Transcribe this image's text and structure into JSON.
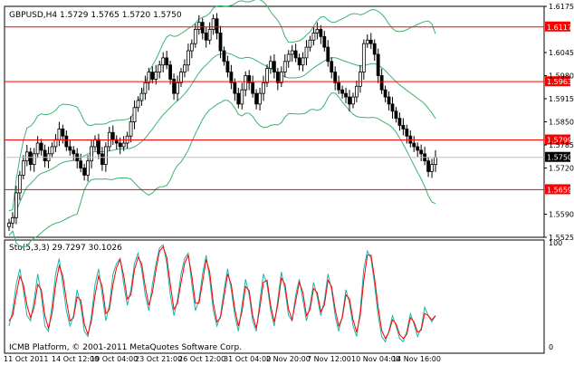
{
  "symbol_header": "GBPUSD,H4  1.5729 1.5765 1.5720 1.5750",
  "indicator_header": "Sto(5,3,3) 29.7297 30.1026",
  "copyright": "ICMB Platform, © 2001-2011 MetaQuotes Software Corp.",
  "colors": {
    "background": "#ffffff",
    "candle": "#000000",
    "bollinger": "#3cb371",
    "level_line": "#ff0000",
    "level_label_bg": "#ff0000",
    "current_label_bg": "#000000",
    "stoch_main": "#20b2aa",
    "stoch_signal": "#ff0000"
  },
  "chart_data": [
    {
      "type": "candlestick",
      "title": "GBPUSD,H4",
      "ohlc_readout": {
        "open": 1.5729,
        "high": 1.5765,
        "low": 1.572,
        "close": 1.575
      },
      "ylim": [
        1.5525,
        1.6175
      ],
      "y_ticks": [
        "1.6175",
        "1.6117",
        "1.6045",
        "1.5980",
        "1.5963",
        "1.5915",
        "1.5850",
        "1.5799",
        "1.5785",
        "1.5750",
        "1.5720",
        "1.5659",
        "1.5590",
        "1.5525"
      ],
      "x_ticks": [
        "11 Oct 2011",
        "14 Oct 12:00",
        "19 Oct 04:00",
        "23 Oct 21:00",
        "26 Oct 12:00",
        "31 Oct 04:00",
        "2 Nov 20:00",
        "7 Nov 12:00",
        "10 Nov 04:00",
        "14 Nov 16:00"
      ],
      "horizontal_levels": [
        {
          "label": "1.6117",
          "value": 1.6117
        },
        {
          "label": "1.5963",
          "value": 1.5963
        },
        {
          "label": "1.5799",
          "value": 1.5799
        },
        {
          "label": "1.5659",
          "value": 1.5659
        }
      ],
      "current_price": {
        "label": "1.5750",
        "value": 1.575
      },
      "series_close": [
        1.5565,
        1.558,
        1.565,
        1.57,
        1.574,
        1.5765,
        1.573,
        1.576,
        1.579,
        1.577,
        1.574,
        1.576,
        1.578,
        1.58,
        1.583,
        1.581,
        1.578,
        1.577,
        1.576,
        1.574,
        1.572,
        1.57,
        1.574,
        1.578,
        1.58,
        1.576,
        1.573,
        1.578,
        1.582,
        1.58,
        1.579,
        1.578,
        1.579,
        1.581,
        1.585,
        1.589,
        1.591,
        1.593,
        1.596,
        1.599,
        1.597,
        1.599,
        1.601,
        1.603,
        1.601,
        1.597,
        1.593,
        1.596,
        1.599,
        1.601,
        1.605,
        1.607,
        1.611,
        1.613,
        1.61,
        1.608,
        1.611,
        1.614,
        1.61,
        1.605,
        1.602,
        1.599,
        1.596,
        1.593,
        1.59,
        1.594,
        1.598,
        1.596,
        1.593,
        1.59,
        1.593,
        1.596,
        1.6,
        1.602,
        1.599,
        1.596,
        1.599,
        1.602,
        1.604,
        1.605,
        1.603,
        1.601,
        1.603,
        1.606,
        1.608,
        1.61,
        1.611,
        1.609,
        1.606,
        1.602,
        1.599,
        1.596,
        1.594,
        1.593,
        1.592,
        1.59,
        1.592,
        1.595,
        1.599,
        1.607,
        1.608,
        1.607,
        1.604,
        1.598,
        1.594,
        1.592,
        1.59,
        1.588,
        1.586,
        1.584,
        1.583,
        1.581,
        1.579,
        1.578,
        1.577,
        1.576,
        1.574,
        1.571,
        1.573,
        1.575
      ]
    },
    {
      "type": "line",
      "title": "Sto(5,3,3)",
      "ylim": [
        0,
        100
      ],
      "y_ticks": [
        "100",
        "0"
      ],
      "series": [
        {
          "name": "main",
          "value_last": 29.7297,
          "values": [
            20,
            35,
            60,
            75,
            55,
            30,
            25,
            45,
            70,
            50,
            20,
            15,
            40,
            70,
            85,
            60,
            35,
            20,
            30,
            55,
            40,
            15,
            10,
            30,
            60,
            75,
            50,
            25,
            40,
            70,
            80,
            85,
            60,
            40,
            55,
            80,
            90,
            75,
            50,
            35,
            60,
            80,
            95,
            98,
            80,
            50,
            30,
            45,
            70,
            85,
            90,
            60,
            35,
            45,
            70,
            88,
            65,
            35,
            20,
            30,
            55,
            75,
            55,
            30,
            15,
            40,
            65,
            50,
            25,
            15,
            45,
            70,
            60,
            35,
            20,
            45,
            72,
            55,
            30,
            25,
            50,
            65,
            45,
            25,
            40,
            62,
            48,
            30,
            45,
            70,
            55,
            30,
            15,
            30,
            55,
            42,
            20,
            10,
            35,
            75,
            92,
            85,
            60,
            30,
            10,
            5,
            15,
            30,
            20,
            8,
            5,
            15,
            32,
            22,
            10,
            18,
            38,
            30,
            24,
            29.7297
          ]
        },
        {
          "name": "signal",
          "value_last": 30.1026,
          "values": [
            25,
            30,
            50,
            68,
            60,
            40,
            28,
            38,
            60,
            55,
            30,
            18,
            32,
            60,
            78,
            68,
            45,
            25,
            28,
            48,
            45,
            22,
            12,
            25,
            50,
            68,
            58,
            32,
            36,
            60,
            76,
            84,
            68,
            46,
            50,
            74,
            86,
            80,
            58,
            40,
            52,
            74,
            92,
            96,
            86,
            60,
            36,
            42,
            62,
            80,
            88,
            68,
            42,
            42,
            62,
            84,
            72,
            42,
            24,
            28,
            48,
            70,
            60,
            36,
            20,
            34,
            58,
            54,
            30,
            18,
            38,
            62,
            64,
            40,
            24,
            40,
            66,
            60,
            36,
            26,
            44,
            62,
            52,
            30,
            36,
            56,
            52,
            34,
            40,
            64,
            58,
            36,
            20,
            28,
            50,
            46,
            26,
            14,
            30,
            64,
            88,
            88,
            66,
            38,
            16,
            8,
            14,
            26,
            22,
            12,
            8,
            12,
            28,
            24,
            14,
            16,
            32,
            30,
            26,
            30.1026
          ]
        }
      ]
    }
  ]
}
